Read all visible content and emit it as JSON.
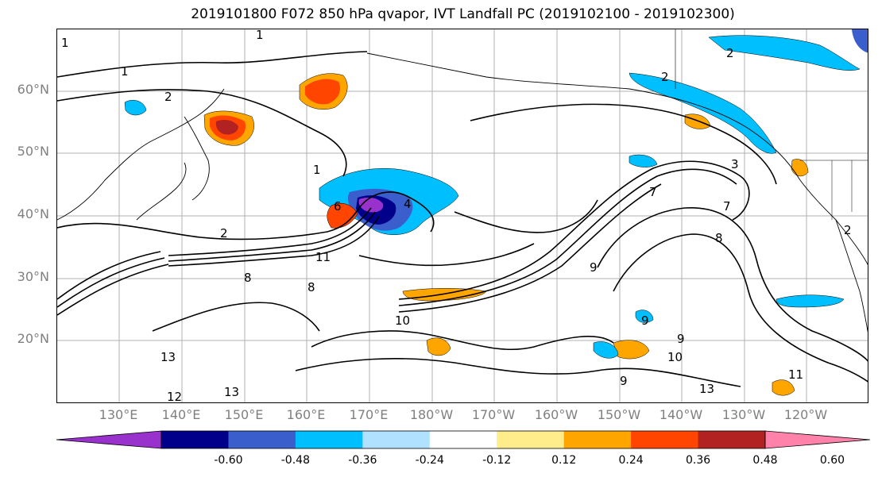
{
  "title": "2019101800 F072 850 hPa qvapor, IVT Landfall PC (2019102100 - 2019102300)",
  "lat_labels": [
    "60°N",
    "50°N",
    "40°N",
    "30°N",
    "20°N"
  ],
  "lon_labels": [
    "130°E",
    "140°E",
    "150°E",
    "160°E",
    "170°E",
    "180°W",
    "170°W",
    "160°W",
    "150°W",
    "140°W",
    "130°W",
    "120°W"
  ],
  "colorbar": {
    "colors": [
      "#9932cc",
      "#00008b",
      "#3a5fcd",
      "#00bfff",
      "#b0e2ff",
      "#ffffff",
      "#ffec8b",
      "#ffa500",
      "#ff4500",
      "#b22222",
      "#ff82ab"
    ],
    "tick_labels": [
      "-0.60",
      "-0.48",
      "-0.36",
      "-0.24",
      "-0.12",
      "0.12",
      "0.24",
      "0.36",
      "0.48",
      "0.60"
    ]
  },
  "contour_labels": [
    "1",
    "1",
    "2",
    "1",
    "2",
    "1",
    "2",
    "2",
    "4",
    "6",
    "8",
    "8",
    "11",
    "10",
    "13",
    "12",
    "13",
    "9",
    "9",
    "9",
    "10",
    "8",
    "7",
    "9",
    "13",
    "11",
    "7",
    "3",
    "2"
  ]
}
